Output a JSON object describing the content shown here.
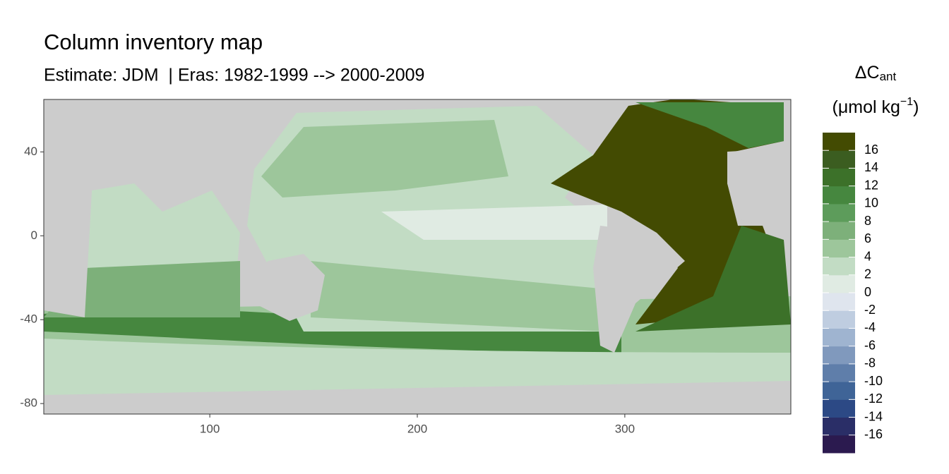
{
  "chart_data": {
    "type": "map",
    "title": "Column inventory map",
    "subtitle": "Estimate: JDM  | Eras: 1982-1999 --> 2000-2009",
    "legend_title": {
      "main": "ΔC",
      "sub": "ant",
      "unit": "(μmol kg",
      "unit_sup": "−1",
      "unit_close": ")"
    },
    "xlim": [
      20,
      380
    ],
    "xticks": [
      100,
      200,
      300
    ],
    "ylim": [
      -85,
      65
    ],
    "yticks": [
      40,
      0,
      -40,
      -80
    ],
    "land_color": "#cccccc",
    "colorbar": {
      "lim": [
        -18,
        18
      ],
      "ticks": [
        16,
        14,
        12,
        10,
        8,
        6,
        4,
        2,
        0,
        -2,
        -4,
        -6,
        -8,
        -10,
        -12,
        -14,
        -16
      ],
      "colors": [
        "#2b1a4f",
        "#2a2e67",
        "#2c4985",
        "#3f6497",
        "#5f7eaa",
        "#8099bd",
        "#9fb4d0",
        "#bfcde0",
        "#dfe5ee",
        "#e0ebe3",
        "#c2dcc4",
        "#9dc69b",
        "#7db07a",
        "#5d9c5b",
        "#46873f",
        "#3c7129",
        "#3b5d20",
        "#434b02"
      ]
    }
  }
}
